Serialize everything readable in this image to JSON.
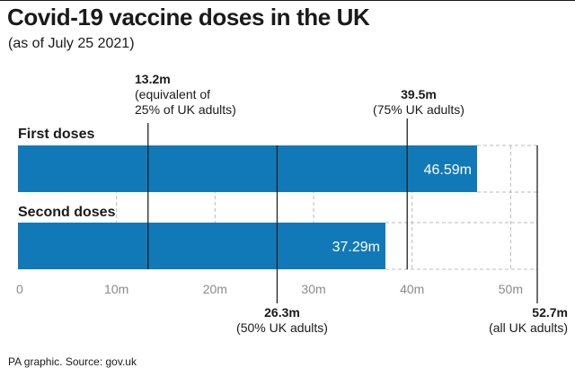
{
  "title": "Covid-19 vaccine doses in the UK",
  "subtitle": "(as of July 25 2021)",
  "source": "PA graphic. Source: gov.uk",
  "colors": {
    "bar": "#1279b8",
    "text": "#1a1a1a",
    "grid": "#bbbbbb",
    "marker": "#222222",
    "tick": "#8a8a8a"
  },
  "chart_data": {
    "type": "bar",
    "orientation": "horizontal",
    "categories": [
      "First doses",
      "Second doses"
    ],
    "values": [
      46.59,
      37.29
    ],
    "value_labels": [
      "46.59m",
      "37.29m"
    ],
    "xlim": [
      0,
      52.7
    ],
    "xticks": [
      0,
      10,
      20,
      30,
      40,
      50
    ],
    "xtick_labels": [
      "0",
      "10m",
      "20m",
      "30m",
      "40m",
      "50m"
    ],
    "grid": true,
    "title": "Covid-19 vaccine doses in the UK",
    "subtitle": "(as of July 25 2021)",
    "xlabel": "",
    "ylabel": "",
    "annotations": [
      {
        "x": 13.2,
        "value": "13.2m",
        "lines": [
          "(equivalent of",
          "25% of UK adults)"
        ],
        "side": "top"
      },
      {
        "x": 39.5,
        "value": "39.5m",
        "lines": [
          "(75% UK adults)"
        ],
        "side": "top"
      },
      {
        "x": 26.3,
        "value": "26.3m",
        "lines": [
          "(50% UK adults)"
        ],
        "side": "bottom"
      },
      {
        "x": 52.7,
        "value": "52.7m",
        "lines": [
          "(all UK adults)"
        ],
        "side": "bottom"
      }
    ]
  }
}
